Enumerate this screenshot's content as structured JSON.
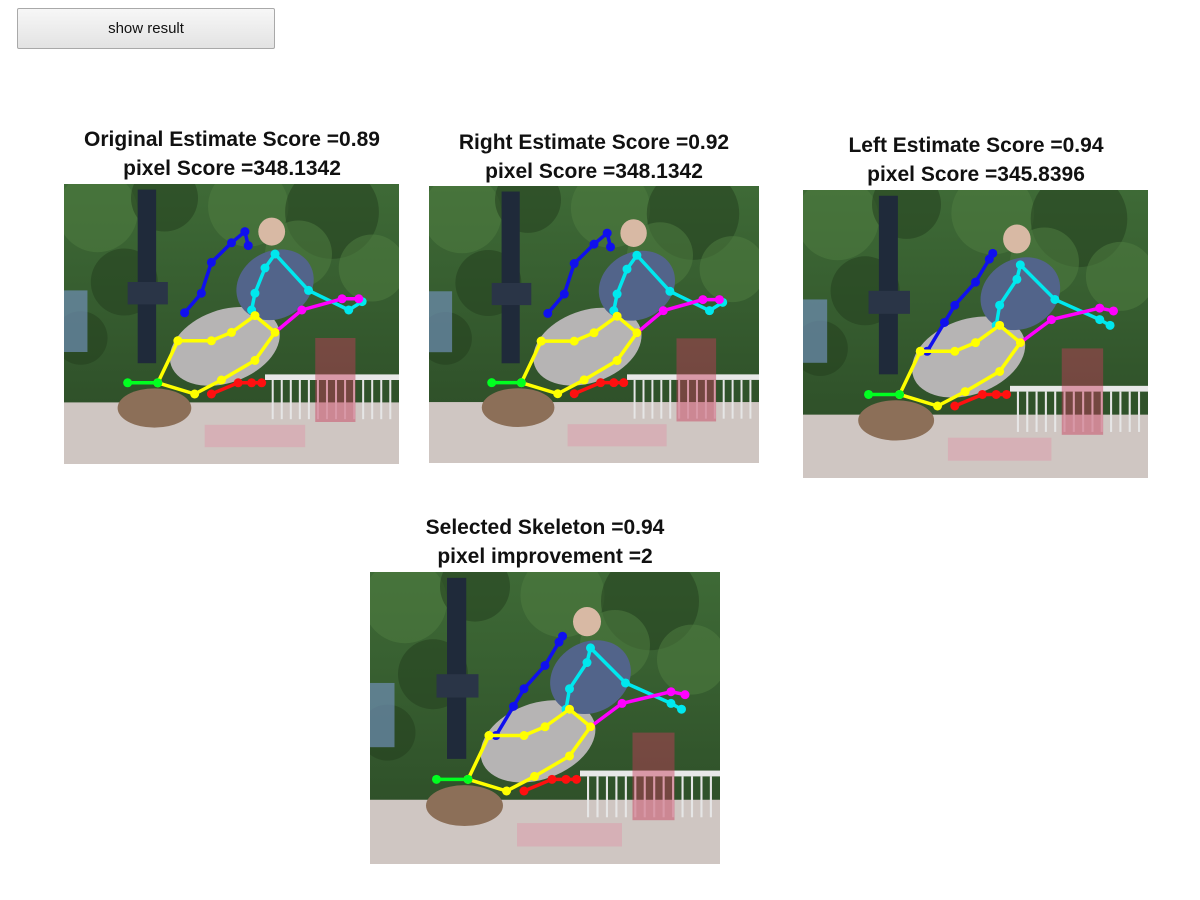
{
  "controls": {
    "show_result_label": "show result"
  },
  "panels": [
    {
      "id": "original",
      "line1": "Original Estimate Score =0.89",
      "line2": "pixel Score =348.1342",
      "variant": "base"
    },
    {
      "id": "right",
      "line1": "Right Estimate Score =0.92",
      "line2": "pixel Score =348.1342",
      "variant": "base"
    },
    {
      "id": "left",
      "line1": "Left Estimate Score =0.94",
      "line2": "pixel Score =345.8396",
      "variant": "left"
    },
    {
      "id": "selected",
      "line1": "Selected Skeleton =0.94",
      "line2": "pixel improvement =2",
      "variant": "left"
    }
  ],
  "skeleton_colors": {
    "blue": "#1010ee",
    "cyan": "#00e8ee",
    "magenta": "#ff00ff",
    "yellow": "#ffff00",
    "red": "#ff1010",
    "green": "#00ff20"
  }
}
